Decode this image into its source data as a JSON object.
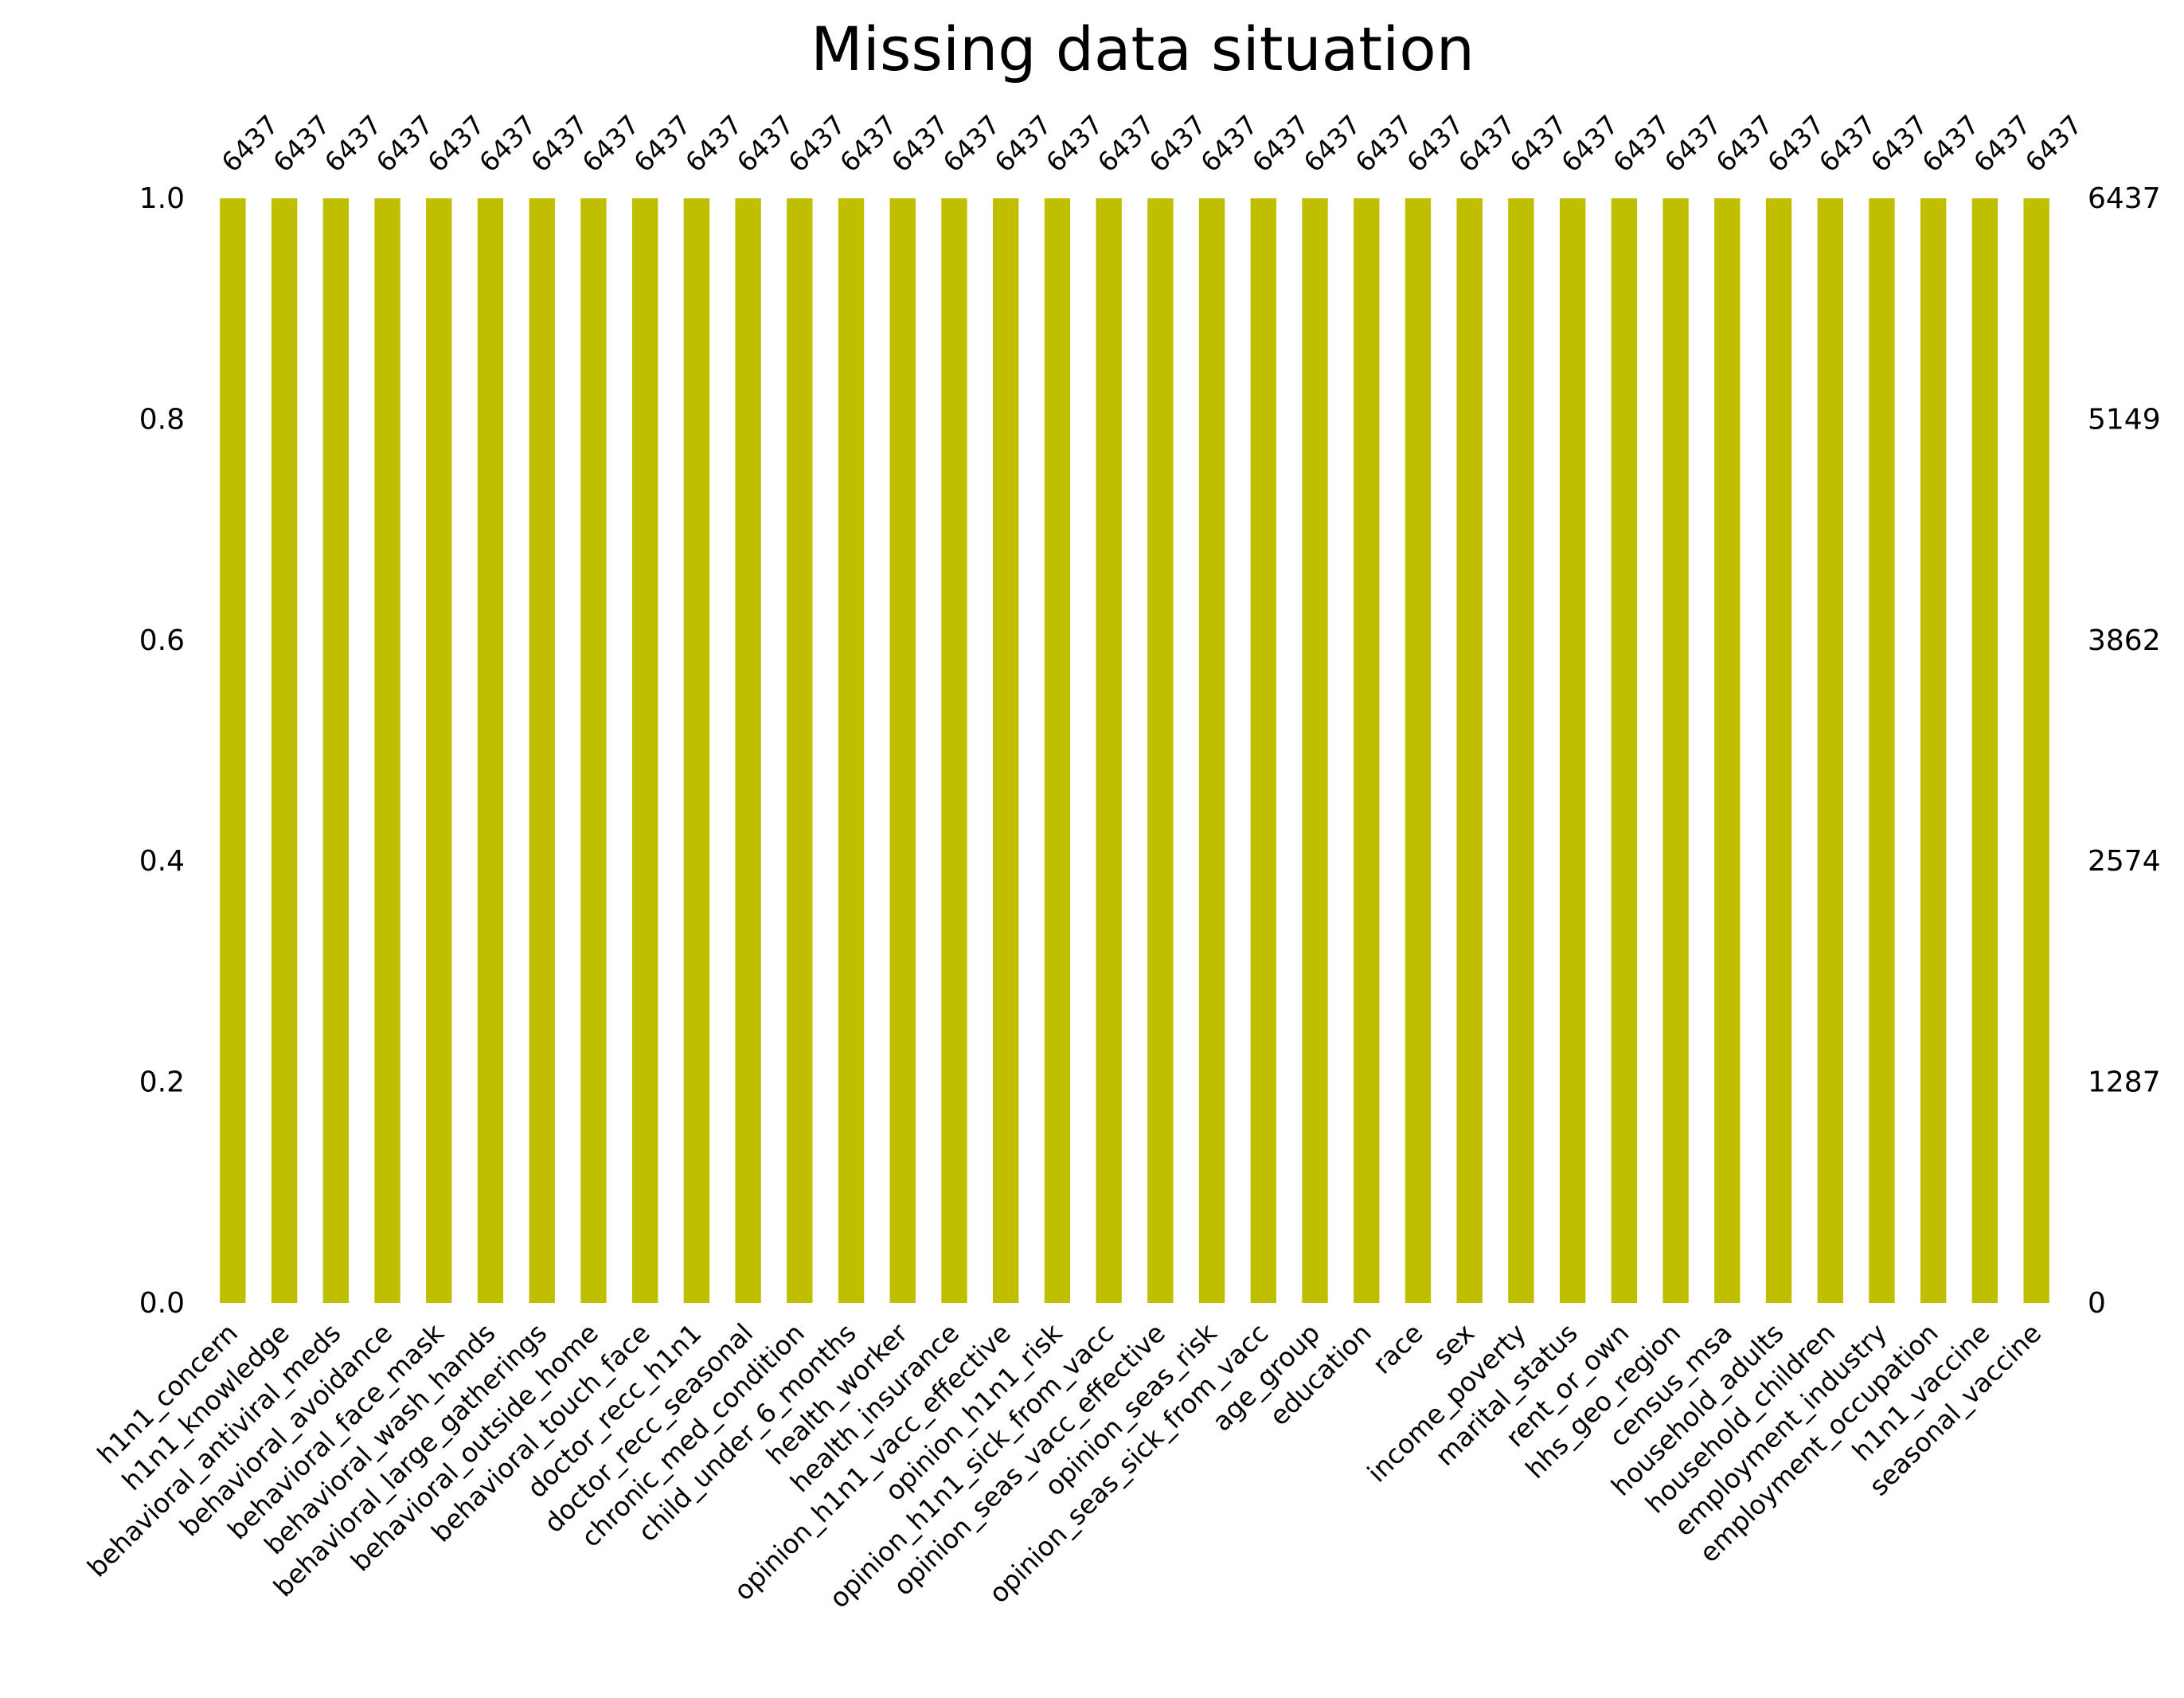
{
  "chart_data": {
    "type": "bar",
    "title": "Missing data situation",
    "xlabel": "",
    "ylabel": "",
    "ylim": [
      0,
      1.0
    ],
    "y_ticks": [
      "0.0",
      "0.2",
      "0.4",
      "0.6",
      "0.8",
      "1.0"
    ],
    "y_tick_values": [
      0,
      0.2,
      0.4,
      0.6,
      0.8,
      1.0
    ],
    "right_ticks": [
      "0",
      "1287",
      "2574",
      "3862",
      "5149",
      "6437"
    ],
    "total_rows": 6437,
    "bar_color": "#bfbf00",
    "grid": false,
    "legend": "none",
    "categories": [
      "h1n1_concern",
      "h1n1_knowledge",
      "behavioral_antiviral_meds",
      "behavioral_avoidance",
      "behavioral_face_mask",
      "behavioral_wash_hands",
      "behavioral_large_gatherings",
      "behavioral_outside_home",
      "behavioral_touch_face",
      "doctor_recc_h1n1",
      "doctor_recc_seasonal",
      "chronic_med_condition",
      "child_under_6_months",
      "health_worker",
      "health_insurance",
      "opinion_h1n1_vacc_effective",
      "opinion_h1n1_risk",
      "opinion_h1n1_sick_from_vacc",
      "opinion_seas_vacc_effective",
      "opinion_seas_risk",
      "opinion_seas_sick_from_vacc",
      "age_group",
      "education",
      "race",
      "sex",
      "income_poverty",
      "marital_status",
      "rent_or_own",
      "hhs_geo_region",
      "census_msa",
      "household_adults",
      "household_children",
      "employment_industry",
      "employment_occupation",
      "h1n1_vaccine",
      "seasonal_vaccine"
    ],
    "values": [
      1.0,
      1.0,
      1.0,
      1.0,
      1.0,
      1.0,
      1.0,
      1.0,
      1.0,
      1.0,
      1.0,
      1.0,
      1.0,
      1.0,
      1.0,
      1.0,
      1.0,
      1.0,
      1.0,
      1.0,
      1.0,
      1.0,
      1.0,
      1.0,
      1.0,
      1.0,
      1.0,
      1.0,
      1.0,
      1.0,
      1.0,
      1.0,
      1.0,
      1.0,
      1.0,
      1.0
    ],
    "counts": [
      "6437",
      "6437",
      "6437",
      "6437",
      "6437",
      "6437",
      "6437",
      "6437",
      "6437",
      "6437",
      "6437",
      "6437",
      "6437",
      "6437",
      "6437",
      "6437",
      "6437",
      "6437",
      "6437",
      "6437",
      "6437",
      "6437",
      "6437",
      "6437",
      "6437",
      "6437",
      "6437",
      "6437",
      "6437",
      "6437",
      "6437",
      "6437",
      "6437",
      "6437",
      "6437",
      "6437"
    ]
  }
}
